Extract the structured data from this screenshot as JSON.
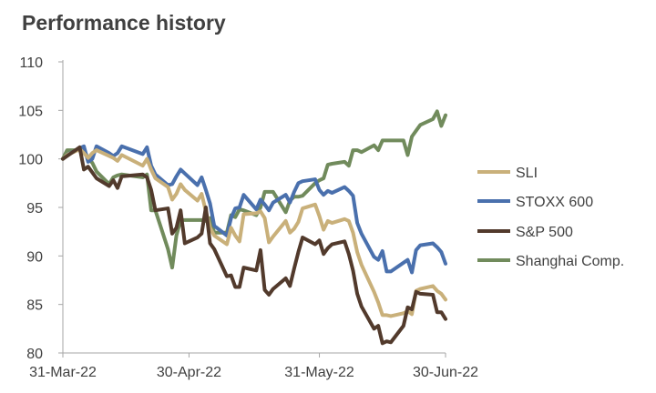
{
  "chart_data": {
    "type": "line",
    "title": "Performance history",
    "xlabel": "",
    "ylabel": "",
    "x_start": "2022-03-31",
    "x_end": "2022-06-30",
    "xticks": [
      {
        "date": "2022-03-31",
        "label": "31-Mar-22"
      },
      {
        "date": "2022-04-30",
        "label": "30-Apr-22"
      },
      {
        "date": "2022-05-31",
        "label": "31-May-22"
      },
      {
        "date": "2022-06-30",
        "label": "30-Jun-22"
      }
    ],
    "ylim": [
      80,
      110
    ],
    "yticks": [
      80,
      85,
      90,
      95,
      100,
      105,
      110
    ],
    "grid": false,
    "legend_position": "right",
    "series": [
      {
        "name": "SLI",
        "color": "#c9b07a",
        "points": [
          [
            "2022-03-31",
            100.0
          ],
          [
            "2022-04-01",
            100.4
          ],
          [
            "2022-04-04",
            101.0
          ],
          [
            "2022-04-05",
            100.6
          ],
          [
            "2022-04-06",
            100.1
          ],
          [
            "2022-04-07",
            100.6
          ],
          [
            "2022-04-08",
            100.9
          ],
          [
            "2022-04-11",
            100.3
          ],
          [
            "2022-04-12",
            100.1
          ],
          [
            "2022-04-13",
            99.8
          ],
          [
            "2022-04-14",
            100.4
          ],
          [
            "2022-04-19",
            99.3
          ],
          [
            "2022-04-20",
            100.0
          ],
          [
            "2022-04-21",
            98.9
          ],
          [
            "2022-04-22",
            98.0
          ],
          [
            "2022-04-25",
            97.1
          ],
          [
            "2022-04-26",
            95.8
          ],
          [
            "2022-04-27",
            96.4
          ],
          [
            "2022-04-28",
            97.4
          ],
          [
            "2022-04-29",
            96.8
          ],
          [
            "2022-05-02",
            95.7
          ],
          [
            "2022-05-03",
            96.4
          ],
          [
            "2022-05-04",
            94.6
          ],
          [
            "2022-05-05",
            92.9
          ],
          [
            "2022-05-06",
            92.1
          ],
          [
            "2022-05-09",
            91.2
          ],
          [
            "2022-05-10",
            92.9
          ],
          [
            "2022-05-11",
            92.1
          ],
          [
            "2022-05-12",
            91.5
          ],
          [
            "2022-05-13",
            94.3
          ],
          [
            "2022-05-16",
            94.4
          ],
          [
            "2022-05-17",
            94.6
          ],
          [
            "2022-05-18",
            93.9
          ],
          [
            "2022-05-19",
            91.4
          ],
          [
            "2022-05-20",
            92.0
          ],
          [
            "2022-05-23",
            93.6
          ],
          [
            "2022-05-24",
            92.4
          ],
          [
            "2022-05-25",
            92.8
          ],
          [
            "2022-05-26",
            93.5
          ],
          [
            "2022-05-27",
            94.9
          ],
          [
            "2022-05-30",
            95.3
          ],
          [
            "2022-05-31",
            94.1
          ],
          [
            "2022-06-01",
            92.7
          ],
          [
            "2022-06-02",
            93.6
          ],
          [
            "2022-06-03",
            93.4
          ],
          [
            "2022-06-06",
            93.8
          ],
          [
            "2022-06-07",
            93.6
          ],
          [
            "2022-06-08",
            92.4
          ],
          [
            "2022-06-09",
            90.4
          ],
          [
            "2022-06-10",
            89.1
          ],
          [
            "2022-06-13",
            86.3
          ],
          [
            "2022-06-14",
            85.2
          ],
          [
            "2022-06-15",
            83.9
          ],
          [
            "2022-06-16",
            83.9
          ],
          [
            "2022-06-17",
            83.8
          ],
          [
            "2022-06-20",
            84.1
          ],
          [
            "2022-06-21",
            84.3
          ],
          [
            "2022-06-22",
            84.0
          ],
          [
            "2022-06-23",
            86.4
          ],
          [
            "2022-06-24",
            86.6
          ],
          [
            "2022-06-27",
            86.9
          ],
          [
            "2022-06-28",
            86.4
          ],
          [
            "2022-06-29",
            86.1
          ],
          [
            "2022-06-30",
            85.5
          ]
        ]
      },
      {
        "name": "STOXX 600",
        "color": "#4a70ad",
        "points": [
          [
            "2022-03-31",
            100.0
          ],
          [
            "2022-04-01",
            100.4
          ],
          [
            "2022-04-04",
            101.1
          ],
          [
            "2022-04-05",
            101.3
          ],
          [
            "2022-04-06",
            99.7
          ],
          [
            "2022-04-07",
            100.0
          ],
          [
            "2022-04-08",
            101.3
          ],
          [
            "2022-04-11",
            100.6
          ],
          [
            "2022-04-12",
            100.3
          ],
          [
            "2022-04-13",
            100.6
          ],
          [
            "2022-04-14",
            101.3
          ],
          [
            "2022-04-19",
            100.5
          ],
          [
            "2022-04-20",
            101.2
          ],
          [
            "2022-04-21",
            99.3
          ],
          [
            "2022-04-22",
            98.4
          ],
          [
            "2022-04-25",
            97.3
          ],
          [
            "2022-04-26",
            97.4
          ],
          [
            "2022-04-27",
            98.2
          ],
          [
            "2022-04-28",
            98.9
          ],
          [
            "2022-04-29",
            98.5
          ],
          [
            "2022-05-02",
            97.3
          ],
          [
            "2022-05-03",
            98.1
          ],
          [
            "2022-05-04",
            96.8
          ],
          [
            "2022-05-05",
            95.4
          ],
          [
            "2022-05-06",
            93.1
          ],
          [
            "2022-05-09",
            92.1
          ],
          [
            "2022-05-10",
            93.9
          ],
          [
            "2022-05-11",
            94.9
          ],
          [
            "2022-05-12",
            95.0
          ],
          [
            "2022-05-13",
            96.3
          ],
          [
            "2022-05-16",
            94.8
          ],
          [
            "2022-05-17",
            95.8
          ],
          [
            "2022-05-18",
            95.3
          ],
          [
            "2022-05-19",
            94.7
          ],
          [
            "2022-05-20",
            95.5
          ],
          [
            "2022-05-23",
            96.3
          ],
          [
            "2022-05-24",
            95.5
          ],
          [
            "2022-05-25",
            96.6
          ],
          [
            "2022-05-26",
            97.5
          ],
          [
            "2022-05-27",
            97.7
          ],
          [
            "2022-05-30",
            97.9
          ],
          [
            "2022-05-31",
            96.8
          ],
          [
            "2022-06-01",
            96.3
          ],
          [
            "2022-06-02",
            96.7
          ],
          [
            "2022-06-03",
            96.5
          ],
          [
            "2022-06-06",
            97.1
          ],
          [
            "2022-06-07",
            96.7
          ],
          [
            "2022-06-08",
            96.2
          ],
          [
            "2022-06-09",
            93.4
          ],
          [
            "2022-06-10",
            92.3
          ],
          [
            "2022-06-13",
            89.9
          ],
          [
            "2022-06-14",
            89.6
          ],
          [
            "2022-06-15",
            90.5
          ],
          [
            "2022-06-16",
            88.4
          ],
          [
            "2022-06-17",
            88.4
          ],
          [
            "2022-06-20",
            89.3
          ],
          [
            "2022-06-21",
            89.6
          ],
          [
            "2022-06-22",
            88.3
          ],
          [
            "2022-06-23",
            90.6
          ],
          [
            "2022-06-24",
            91.1
          ],
          [
            "2022-06-27",
            91.3
          ],
          [
            "2022-06-28",
            90.9
          ],
          [
            "2022-06-29",
            90.4
          ],
          [
            "2022-06-30",
            89.2
          ]
        ]
      },
      {
        "name": "S&P 500",
        "color": "#523a2c",
        "points": [
          [
            "2022-03-31",
            100.0
          ],
          [
            "2022-04-01",
            100.3
          ],
          [
            "2022-04-04",
            101.2
          ],
          [
            "2022-04-05",
            98.9
          ],
          [
            "2022-04-06",
            99.2
          ],
          [
            "2022-04-07",
            98.6
          ],
          [
            "2022-04-08",
            98.0
          ],
          [
            "2022-04-11",
            97.2
          ],
          [
            "2022-04-12",
            97.8
          ],
          [
            "2022-04-13",
            97.0
          ],
          [
            "2022-04-14",
            98.2
          ],
          [
            "2022-04-19",
            98.4
          ],
          [
            "2022-04-20",
            98.1
          ],
          [
            "2022-04-21",
            96.8
          ],
          [
            "2022-04-22",
            94.7
          ],
          [
            "2022-04-25",
            94.9
          ],
          [
            "2022-04-26",
            92.3
          ],
          [
            "2022-04-27",
            92.9
          ],
          [
            "2022-04-28",
            94.7
          ],
          [
            "2022-04-29",
            91.3
          ],
          [
            "2022-05-02",
            91.9
          ],
          [
            "2022-05-03",
            92.3
          ],
          [
            "2022-05-04",
            95.0
          ],
          [
            "2022-05-05",
            91.3
          ],
          [
            "2022-05-06",
            90.7
          ],
          [
            "2022-05-09",
            87.9
          ],
          [
            "2022-05-10",
            88.0
          ],
          [
            "2022-05-11",
            86.8
          ],
          [
            "2022-05-12",
            86.8
          ],
          [
            "2022-05-13",
            88.8
          ],
          [
            "2022-05-16",
            88.5
          ],
          [
            "2022-05-17",
            90.6
          ],
          [
            "2022-05-18",
            86.5
          ],
          [
            "2022-05-19",
            86.0
          ],
          [
            "2022-05-20",
            86.6
          ],
          [
            "2022-05-23",
            87.7
          ],
          [
            "2022-05-24",
            86.9
          ],
          [
            "2022-05-25",
            88.7
          ],
          [
            "2022-05-26",
            90.4
          ],
          [
            "2022-05-27",
            91.9
          ],
          [
            "2022-05-30",
            91.2
          ],
          [
            "2022-05-31",
            91.6
          ],
          [
            "2022-06-01",
            90.2
          ],
          [
            "2022-06-02",
            90.8
          ],
          [
            "2022-06-03",
            91.2
          ],
          [
            "2022-06-06",
            91.5
          ],
          [
            "2022-06-07",
            90.2
          ],
          [
            "2022-06-08",
            88.5
          ],
          [
            "2022-06-09",
            86.1
          ],
          [
            "2022-06-10",
            84.8
          ],
          [
            "2022-06-13",
            82.5
          ],
          [
            "2022-06-14",
            82.8
          ],
          [
            "2022-06-15",
            81.0
          ],
          [
            "2022-06-16",
            81.2
          ],
          [
            "2022-06-17",
            81.1
          ],
          [
            "2022-06-20",
            82.8
          ],
          [
            "2022-06-21",
            84.7
          ],
          [
            "2022-06-22",
            84.5
          ],
          [
            "2022-06-23",
            86.3
          ],
          [
            "2022-06-24",
            86.1
          ],
          [
            "2022-06-27",
            86.0
          ],
          [
            "2022-06-28",
            84.2
          ],
          [
            "2022-06-29",
            84.2
          ],
          [
            "2022-06-30",
            83.5
          ]
        ]
      },
      {
        "name": "Shanghai Comp.",
        "color": "#718b5c",
        "points": [
          [
            "2022-03-31",
            100.0
          ],
          [
            "2022-04-01",
            100.9
          ],
          [
            "2022-04-04",
            100.9
          ],
          [
            "2022-04-05",
            101.0
          ],
          [
            "2022-04-06",
            100.0
          ],
          [
            "2022-04-07",
            99.6
          ],
          [
            "2022-04-08",
            98.7
          ],
          [
            "2022-04-11",
            97.4
          ],
          [
            "2022-04-12",
            98.1
          ],
          [
            "2022-04-13",
            98.3
          ],
          [
            "2022-04-14",
            98.4
          ],
          [
            "2022-04-19",
            98.1
          ],
          [
            "2022-04-20",
            98.4
          ],
          [
            "2022-04-21",
            94.7
          ],
          [
            "2022-04-22",
            94.7
          ],
          [
            "2022-04-25",
            90.7
          ],
          [
            "2022-04-26",
            88.8
          ],
          [
            "2022-04-27",
            92.1
          ],
          [
            "2022-04-28",
            93.7
          ],
          [
            "2022-04-29",
            93.7
          ],
          [
            "2022-05-02",
            93.7
          ],
          [
            "2022-05-03",
            93.7
          ],
          [
            "2022-05-04",
            93.6
          ],
          [
            "2022-05-05",
            93.9
          ],
          [
            "2022-05-06",
            92.4
          ],
          [
            "2022-05-09",
            92.4
          ],
          [
            "2022-05-10",
            94.2
          ],
          [
            "2022-05-11",
            94.0
          ],
          [
            "2022-05-12",
            94.8
          ],
          [
            "2022-05-13",
            94.7
          ],
          [
            "2022-05-16",
            94.2
          ],
          [
            "2022-05-17",
            95.0
          ],
          [
            "2022-05-18",
            96.6
          ],
          [
            "2022-05-19",
            96.6
          ],
          [
            "2022-05-20",
            96.6
          ],
          [
            "2022-05-23",
            94.5
          ],
          [
            "2022-05-24",
            95.7
          ],
          [
            "2022-05-25",
            96.1
          ],
          [
            "2022-05-26",
            96.1
          ],
          [
            "2022-05-27",
            96.2
          ],
          [
            "2022-05-30",
            97.5
          ],
          [
            "2022-05-31",
            97.8
          ],
          [
            "2022-06-01",
            98.0
          ],
          [
            "2022-06-02",
            99.4
          ],
          [
            "2022-06-03",
            99.5
          ],
          [
            "2022-06-06",
            99.7
          ],
          [
            "2022-06-07",
            99.3
          ],
          [
            "2022-06-08",
            100.9
          ],
          [
            "2022-06-09",
            100.9
          ],
          [
            "2022-06-10",
            100.7
          ],
          [
            "2022-06-13",
            101.4
          ],
          [
            "2022-06-14",
            100.9
          ],
          [
            "2022-06-15",
            101.9
          ],
          [
            "2022-06-16",
            101.9
          ],
          [
            "2022-06-17",
            101.9
          ],
          [
            "2022-06-20",
            101.9
          ],
          [
            "2022-06-21",
            100.4
          ],
          [
            "2022-06-22",
            102.3
          ],
          [
            "2022-06-23",
            102.9
          ],
          [
            "2022-06-24",
            103.5
          ],
          [
            "2022-06-27",
            104.1
          ],
          [
            "2022-06-28",
            104.9
          ],
          [
            "2022-06-29",
            103.4
          ],
          [
            "2022-06-30",
            104.5
          ]
        ]
      }
    ]
  }
}
